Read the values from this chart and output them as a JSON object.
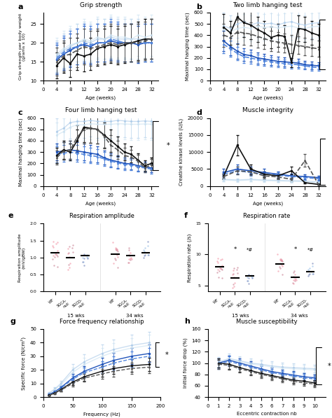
{
  "colors": {
    "wt_male": "#a8c8e8",
    "wt_female": "#c8e0f0",
    "sgca_male": "#2255bb",
    "sgca_female": "#5588dd",
    "sgcd_male": "#111111",
    "sgcd_female": "#555555"
  },
  "age_weeks": [
    4,
    6,
    8,
    10,
    12,
    14,
    16,
    18,
    20,
    22,
    24,
    26,
    28,
    30,
    32
  ],
  "grip_wt_male": [
    16.5,
    18,
    19,
    20,
    20.5,
    20,
    21,
    21,
    21.5,
    21,
    21,
    21,
    21,
    21,
    21
  ],
  "grip_wt_female": [
    17,
    18.5,
    19.5,
    20,
    21,
    20.5,
    21.5,
    21,
    22,
    21.5,
    21.5,
    21,
    22,
    21.5,
    22
  ],
  "grip_sgca_male": [
    15.5,
    17,
    18,
    19,
    19.5,
    19,
    20,
    20,
    20.5,
    20,
    20,
    20,
    19.5,
    20,
    20
  ],
  "grip_sgca_female": [
    16,
    17.5,
    18.5,
    19,
    20,
    19.5,
    20,
    20,
    21,
    20.5,
    20,
    20,
    20,
    20,
    20
  ],
  "grip_sgcd_male": [
    14,
    16,
    14.5,
    17,
    16.5,
    17,
    18.5,
    19,
    19.5,
    19,
    19.5,
    20,
    20.5,
    21,
    21
  ],
  "grip_sgcd_female": [
    15,
    16.5,
    17,
    18,
    19,
    18.5,
    19,
    19.5,
    20,
    19.5,
    20,
    20,
    20,
    20.5,
    21
  ],
  "two_wt_male": [
    480,
    460,
    500,
    520,
    490,
    510,
    500,
    505,
    490,
    510,
    520,
    500,
    490,
    505,
    510
  ],
  "two_wt_female": [
    450,
    430,
    460,
    470,
    460,
    480,
    470,
    475,
    465,
    475,
    480,
    465,
    460,
    475,
    480
  ],
  "two_sgca_male": [
    350,
    300,
    260,
    230,
    220,
    200,
    190,
    180,
    170,
    165,
    160,
    155,
    140,
    135,
    130
  ],
  "two_sgca_female": [
    320,
    280,
    240,
    210,
    200,
    185,
    175,
    165,
    155,
    150,
    145,
    140,
    130,
    120,
    115
  ],
  "two_sgcd_male": [
    470,
    420,
    560,
    510,
    490,
    450,
    420,
    380,
    400,
    390,
    160,
    460,
    450,
    420,
    400
  ],
  "two_sgcd_female": [
    400,
    380,
    430,
    420,
    410,
    390,
    370,
    350,
    340,
    330,
    320,
    310,
    300,
    290,
    280
  ],
  "four_wt_male": [
    480,
    510,
    560,
    570,
    570,
    580,
    570,
    570,
    570,
    580,
    575,
    570,
    570,
    575,
    570
  ],
  "four_wt_female": [
    450,
    480,
    520,
    540,
    540,
    550,
    545,
    545,
    545,
    550,
    548,
    545,
    545,
    548,
    545
  ],
  "four_sgca_male": [
    300,
    310,
    320,
    310,
    300,
    290,
    280,
    250,
    230,
    215,
    200,
    195,
    180,
    170,
    160
  ],
  "four_sgca_female": [
    280,
    290,
    300,
    290,
    280,
    270,
    260,
    240,
    220,
    205,
    190,
    185,
    170,
    160,
    150
  ],
  "four_sgcd_male": [
    270,
    320,
    300,
    400,
    520,
    510,
    500,
    450,
    400,
    350,
    300,
    280,
    230,
    180,
    200
  ],
  "four_sgcd_female": [
    250,
    310,
    320,
    430,
    500,
    510,
    500,
    440,
    360,
    320,
    270,
    255,
    220,
    160,
    190
  ],
  "ck_age": [
    4,
    8,
    12,
    16,
    20,
    24,
    28,
    32
  ],
  "ck_wt_male": [
    2000,
    1800,
    2000,
    1800,
    1700,
    1600,
    1500,
    1200
  ],
  "ck_wt_female": [
    1800,
    1600,
    1800,
    1600,
    1500,
    1400,
    1300,
    1000
  ],
  "ck_sgca_male": [
    4000,
    5000,
    4500,
    4000,
    3500,
    3000,
    2800,
    2500
  ],
  "ck_sgca_female": [
    3500,
    4500,
    4000,
    3500,
    3200,
    2800,
    2500,
    2200
  ],
  "ck_sgcd_male": [
    3000,
    12000,
    5000,
    3500,
    3000,
    4500,
    1000,
    500
  ],
  "ck_sgcd_female": [
    2800,
    4500,
    4200,
    3000,
    2700,
    2000,
    7500,
    400
  ],
  "freq_hz": [
    10,
    20,
    30,
    50,
    70,
    100,
    120,
    150,
    180
  ],
  "force_wt_male": [
    3,
    6,
    10,
    20,
    26,
    32,
    35,
    38,
    40
  ],
  "force_wt_female": [
    2.5,
    5.5,
    9,
    18,
    24,
    30,
    33,
    36,
    38
  ],
  "force_sgca_male": [
    2,
    4,
    7,
    14,
    19,
    24,
    27,
    30,
    32
  ],
  "force_sgca_female": [
    1.8,
    3.8,
    6.5,
    13,
    18,
    22,
    25,
    28,
    30
  ],
  "force_sgcd_male": [
    1.5,
    3,
    5.5,
    11,
    15,
    19,
    21,
    23,
    24
  ],
  "force_sgcd_female": [
    1.3,
    2.8,
    5,
    10,
    14,
    17,
    19,
    21,
    22
  ],
  "ecc_nb": [
    1,
    2,
    3,
    4,
    5,
    6,
    7,
    8,
    9,
    10
  ],
  "susc_wt_male": [
    102,
    108,
    104,
    100,
    98,
    95,
    93,
    92,
    91,
    90
  ],
  "susc_wt_female": [
    100,
    106,
    102,
    98,
    96,
    93,
    91,
    90,
    89,
    88
  ],
  "susc_sgca_male": [
    100,
    105,
    100,
    95,
    90,
    85,
    82,
    79,
    76,
    74
  ],
  "susc_sgca_female": [
    98,
    103,
    98,
    93,
    88,
    83,
    80,
    77,
    74,
    72
  ],
  "susc_sgcd_male": [
    100,
    98,
    92,
    87,
    82,
    78,
    74,
    70,
    68,
    65
  ],
  "susc_sgcd_female": [
    98,
    96,
    90,
    85,
    80,
    76,
    72,
    68,
    65,
    63
  ],
  "pink_m": "#f4a0b0",
  "pink_f": "#d090a0",
  "blue_m": "#a0c4e8",
  "blue_f": "#8090c0"
}
